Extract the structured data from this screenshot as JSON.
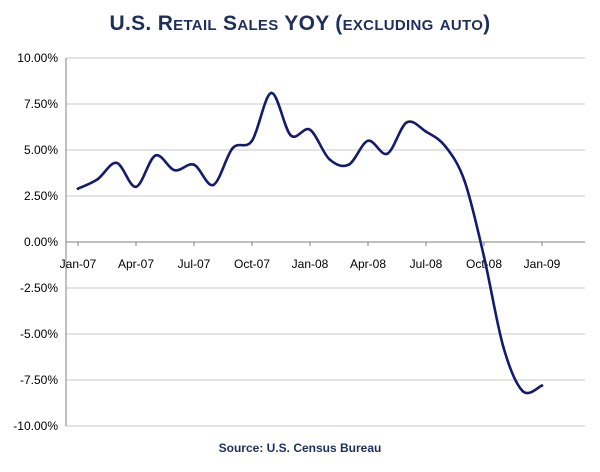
{
  "title": "U.S. Retail Sales YOY (excluding auto)",
  "source": "Source: U.S. Census Bureau",
  "colors": {
    "line": "#141a6e",
    "title": "#1f2f5c",
    "grid": "#c8c8c8",
    "axis": "#808080"
  },
  "chart_data": {
    "type": "line",
    "title": "U.S. Retail Sales YOY (excluding auto)",
    "xlabel": "",
    "ylabel": "",
    "grid": true,
    "ylim": [
      -10,
      10
    ],
    "y_ticks": [
      "10.00%",
      "7.50%",
      "5.00%",
      "2.50%",
      "0.00%",
      "-2.50%",
      "-5.00%",
      "-7.50%",
      "-10.00%"
    ],
    "y_tick_values": [
      10,
      7.5,
      5,
      2.5,
      0,
      -2.5,
      -5,
      -7.5,
      -10
    ],
    "x_tick_labels": [
      "Jan-07",
      "Apr-07",
      "Jul-07",
      "Oct-07",
      "Jan-08",
      "Apr-08",
      "Jul-08",
      "Oct-08",
      "Jan-09"
    ],
    "series": [
      {
        "x": [
          "Jan-07",
          "Feb-07",
          "Mar-07",
          "Apr-07",
          "May-07",
          "Jun-07",
          "Jul-07",
          "Aug-07",
          "Sep-07",
          "Oct-07",
          "Nov-07",
          "Dec-07",
          "Jan-08",
          "Feb-08",
          "Mar-08",
          "Apr-08",
          "May-08",
          "Jun-08",
          "Jul-08",
          "Aug-08",
          "Sep-08",
          "Oct-08",
          "Nov-08",
          "Dec-08",
          "Jan-09"
        ],
        "values": [
          2.9,
          3.4,
          4.3,
          3.0,
          4.7,
          3.9,
          4.2,
          3.1,
          5.1,
          5.5,
          8.1,
          5.8,
          6.1,
          4.5,
          4.2,
          5.5,
          4.8,
          6.5,
          6.0,
          5.2,
          3.3,
          -0.8,
          -5.7,
          -8.1,
          -7.8
        ]
      }
    ]
  }
}
